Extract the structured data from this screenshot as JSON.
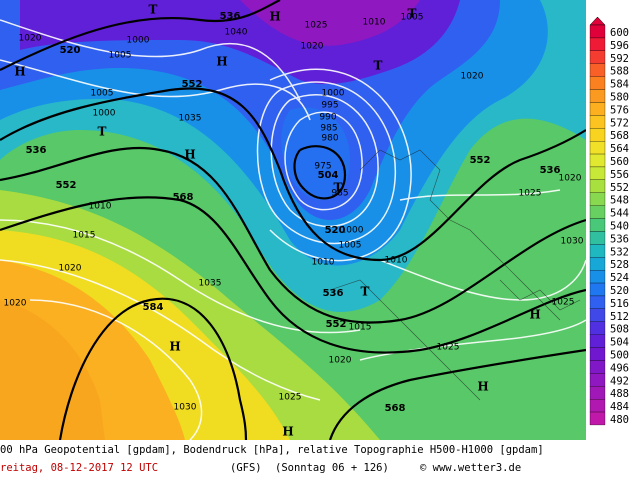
{
  "legend": {
    "labels": [
      600,
      596,
      592,
      588,
      584,
      580,
      576,
      572,
      568,
      564,
      560,
      556,
      552,
      548,
      544,
      540,
      536,
      532,
      528,
      524,
      520,
      516,
      512,
      508,
      504,
      500,
      496,
      492,
      488,
      484,
      480
    ],
    "colors": [
      "#e0003a",
      "#ef1a36",
      "#f53c30",
      "#f86028",
      "#fa8020",
      "#fb9a20",
      "#fcb020",
      "#fcc420",
      "#f8d420",
      "#f0e028",
      "#e0e830",
      "#c8e838",
      "#a8e040",
      "#88d850",
      "#68d060",
      "#48c878",
      "#30c0a0",
      "#20b8c0",
      "#18a8d8",
      "#1890e8",
      "#2078f0",
      "#3060f0",
      "#4048e8",
      "#5030e0",
      "#6020d8",
      "#7018d0",
      "#8018c8",
      "#9018c0",
      "#a018b8",
      "#b018b0",
      "#c018a8"
    ]
  },
  "map": {
    "labels": [
      "536",
      "520",
      "552",
      "536",
      "552",
      "568",
      "552",
      "536",
      "504",
      "520",
      "536",
      "552",
      "584",
      "568",
      "1000",
      "1005",
      "1005",
      "1000",
      "1035",
      "1020",
      "1010",
      "1020",
      "1025",
      "1020",
      "1000",
      "995",
      "990",
      "985",
      "980",
      "975",
      "985",
      "1000",
      "1005",
      "1010",
      "1010",
      "1015",
      "1020",
      "1025",
      "1015",
      "1020",
      "1035",
      "1020",
      "1030",
      "1025",
      "1010",
      "1030",
      "1025",
      "1020",
      "1025",
      "1040",
      "1005",
      "H",
      "T",
      "H",
      "T",
      "T",
      "H",
      "T",
      "H",
      "T",
      "H",
      "H",
      "H",
      "H",
      "T"
    ]
  },
  "caption": {
    "line1": "00 hPa Geopotential [gpdam], Bodendruck [hPa], relative Topographie H500-H1000 [gpdam]",
    "date": "reitag, 08-12-2017  12 UTC",
    "model": "(GFS)",
    "run": "(Sonntag 06 + 126)",
    "credit": "© www.wetter3.de"
  }
}
